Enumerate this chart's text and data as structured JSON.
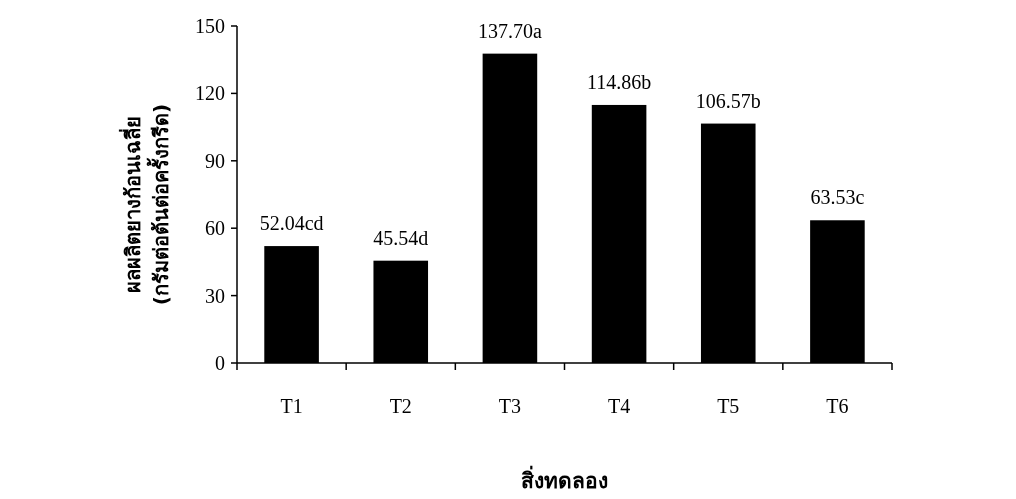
{
  "chart_data": {
    "type": "bar",
    "xlabel": "สิ่งทดลอง",
    "ylabel": "ผลผลิตยางก้อนเฉลี่ย\n(กรัมต่อต้นต่อครั้งกรีด)",
    "categories": [
      "T1",
      "T2",
      "T3",
      "T4",
      "T5",
      "T6"
    ],
    "values": [
      52.04,
      45.54,
      137.7,
      114.86,
      106.57,
      63.53
    ],
    "value_labels": [
      "52.04cd",
      "45.54d",
      "137.70a",
      "114.86b",
      "106.57b",
      "63.53c"
    ],
    "color": "#000000",
    "ylim": [
      0,
      150
    ],
    "yticks": [
      0,
      30,
      60,
      90,
      120,
      150
    ],
    "grid": false
  }
}
